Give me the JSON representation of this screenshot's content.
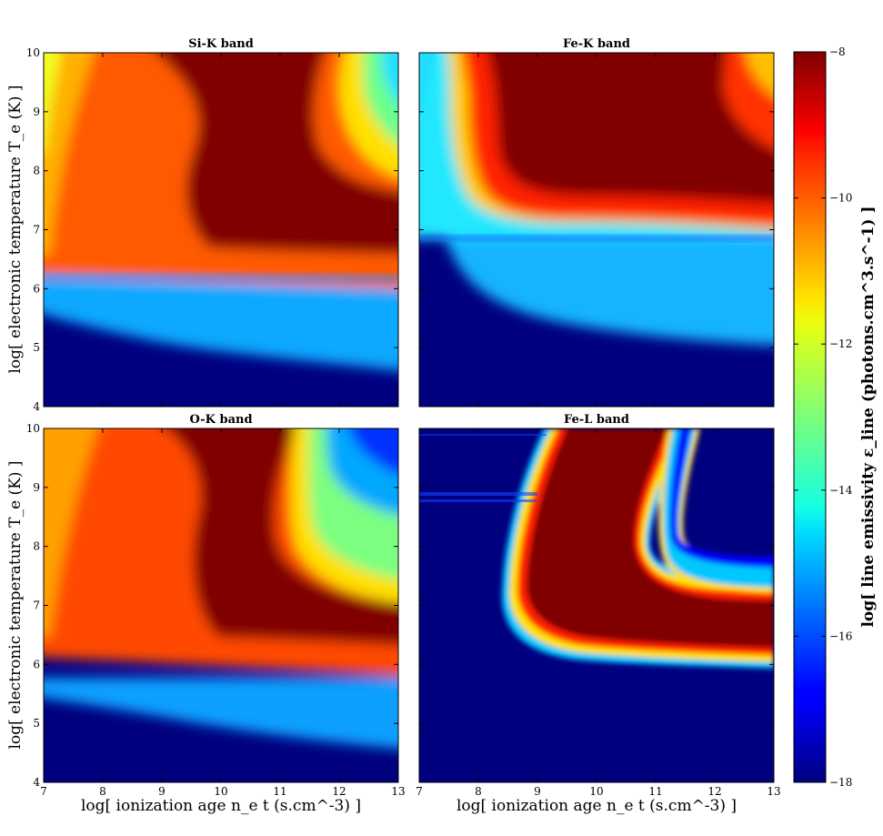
{
  "chart_data": [
    {
      "type": "heatmap",
      "title": "Si-K band",
      "xlabel": "",
      "ylabel": "log[ electronic temperature  T_e (K) ]",
      "xlim": [
        7,
        13
      ],
      "ylim": [
        4,
        10
      ],
      "xticks": [],
      "yticks": [
        "4",
        "5",
        "6",
        "7",
        "8",
        "9",
        "10"
      ]
    },
    {
      "type": "heatmap",
      "title": "Fe-K band",
      "xlabel": "",
      "ylabel": "",
      "xlim": [
        7,
        13
      ],
      "ylim": [
        4,
        10
      ],
      "xticks": [],
      "yticks": []
    },
    {
      "type": "heatmap",
      "title": "O-K band",
      "xlabel": "log[ ionization age  n_e t (s.cm^-3) ]",
      "ylabel": "log[ electronic temperature  T_e (K) ]",
      "xlim": [
        7,
        13
      ],
      "ylim": [
        4,
        10
      ],
      "xticks": [
        "7",
        "8",
        "9",
        "10",
        "11",
        "12",
        "13"
      ],
      "yticks": [
        "4",
        "5",
        "6",
        "7",
        "8",
        "9",
        "10"
      ]
    },
    {
      "type": "heatmap",
      "title": "Fe-L band",
      "xlabel": "log[ ionization age  n_e t (s.cm^-3) ]",
      "ylabel": "",
      "xlim": [
        7,
        13
      ],
      "ylim": [
        4,
        10
      ],
      "xticks": [
        "7",
        "8",
        "9",
        "10",
        "11",
        "12",
        "13"
      ],
      "yticks": []
    }
  ],
  "colorbar": {
    "label": "log[ line emissivity  ε_line (photons.cm^3.s^-1) ]",
    "range": [
      -18,
      -8
    ],
    "ticks": [
      "−8",
      "−10",
      "−12",
      "−14",
      "−16",
      "−18"
    ],
    "colormap": "jet"
  }
}
